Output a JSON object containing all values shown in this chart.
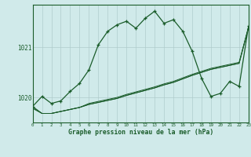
{
  "title": "Graphe pression niveau de la mer (hPa)",
  "background_color": "#d0eaea",
  "grid_color": "#b0cccc",
  "line_color": "#1a5c2a",
  "xlim": [
    0,
    23
  ],
  "ylim": [
    1019.5,
    1021.85
  ],
  "yticks": [
    1020,
    1021
  ],
  "xticks": [
    0,
    1,
    2,
    3,
    4,
    5,
    6,
    7,
    8,
    9,
    10,
    11,
    12,
    13,
    14,
    15,
    16,
    17,
    18,
    19,
    20,
    21,
    22,
    23
  ],
  "hours": [
    0,
    1,
    2,
    3,
    4,
    5,
    6,
    7,
    8,
    9,
    10,
    11,
    12,
    13,
    14,
    15,
    16,
    17,
    18,
    19,
    20,
    21,
    22,
    23
  ],
  "main_line": [
    1019.82,
    1020.02,
    1019.88,
    1019.93,
    1020.12,
    1020.28,
    1020.55,
    1021.05,
    1021.32,
    1021.45,
    1021.52,
    1021.38,
    1021.58,
    1021.72,
    1021.48,
    1021.55,
    1021.32,
    1020.92,
    1020.38,
    1020.02,
    1020.08,
    1020.32,
    1020.22,
    1021.42
  ],
  "line_a": [
    1019.78,
    1019.68,
    1019.68,
    1019.72,
    1019.76,
    1019.8,
    1019.86,
    1019.9,
    1019.94,
    1019.98,
    1020.04,
    1020.09,
    1020.14,
    1020.19,
    1020.25,
    1020.3,
    1020.37,
    1020.44,
    1020.5,
    1020.56,
    1020.6,
    1020.64,
    1020.68,
    1021.4
  ],
  "line_b": [
    1019.8,
    1019.68,
    1019.68,
    1019.72,
    1019.76,
    1019.8,
    1019.86,
    1019.9,
    1019.94,
    1019.98,
    1020.04,
    1020.09,
    1020.14,
    1020.19,
    1020.25,
    1020.3,
    1020.37,
    1020.44,
    1020.5,
    1020.56,
    1020.6,
    1020.64,
    1020.68,
    1021.4
  ],
  "line_c": [
    1019.82,
    1019.68,
    1019.68,
    1019.72,
    1019.76,
    1019.8,
    1019.88,
    1019.92,
    1019.96,
    1020.0,
    1020.06,
    1020.11,
    1020.16,
    1020.21,
    1020.27,
    1020.32,
    1020.39,
    1020.46,
    1020.52,
    1020.58,
    1020.62,
    1020.66,
    1020.7,
    1021.4
  ]
}
